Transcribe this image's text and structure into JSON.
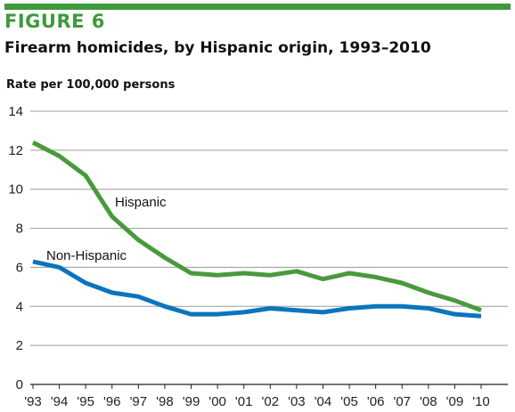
{
  "figure": {
    "label": "FIGURE 6",
    "title": "Firearm homicides, by Hispanic origin, 1993–2010"
  },
  "colors": {
    "accent": "#3e9a3b",
    "hispanic": "#4a9a3d",
    "non_hispanic": "#0a75bd",
    "gridline": "#9a9a9a"
  },
  "chart_data": {
    "type": "line",
    "title": "Firearm homicides, by Hispanic origin, 1993–2010",
    "ylabel": "Rate per 100,000 persons",
    "xlabel": "",
    "x": [
      "'93",
      "'94",
      "'95",
      "'96",
      "'97",
      "'98",
      "'99",
      "'00",
      "'01",
      "'02",
      "'03",
      "'04",
      "'05",
      "'06",
      "'07",
      "'08",
      "'09",
      "'10"
    ],
    "ylim": [
      0,
      14
    ],
    "yticks": [
      0,
      2,
      4,
      6,
      8,
      10,
      12,
      14
    ],
    "grid": "horizontal",
    "series": [
      {
        "name": "Hispanic",
        "color": "#4a9a3d",
        "values": [
          12.4,
          11.7,
          10.7,
          8.6,
          7.4,
          6.5,
          5.7,
          5.6,
          5.7,
          5.6,
          5.8,
          5.4,
          5.7,
          5.5,
          5.2,
          4.7,
          4.3,
          3.8
        ]
      },
      {
        "name": "Non-Hispanic",
        "color": "#0a75bd",
        "values": [
          6.3,
          6.0,
          5.2,
          4.7,
          4.5,
          4.0,
          3.6,
          3.6,
          3.7,
          3.9,
          3.8,
          3.7,
          3.9,
          4.0,
          4.0,
          3.9,
          3.6,
          3.5
        ]
      }
    ]
  }
}
